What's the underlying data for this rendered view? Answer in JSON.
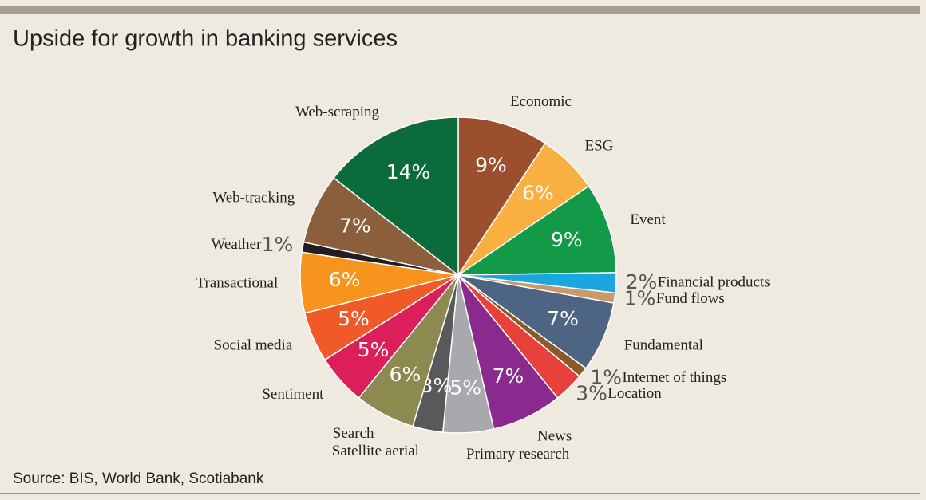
{
  "chart_data": {
    "type": "pie",
    "title": "Upside for growth in banking services",
    "source": "Source: BIS, World Bank, Scotiabank",
    "categories": [
      "Economic",
      "ESG",
      "Event",
      "Financial products",
      "Fund flows",
      "Fundamental",
      "Internet of things",
      "Location",
      "News",
      "Primary research",
      "Satellite aerial",
      "Search",
      "Sentiment",
      "Social media",
      "Transactional",
      "Weather",
      "Web-tracking",
      "Web-scraping"
    ],
    "values": [
      9,
      6,
      9,
      2,
      1,
      7,
      1,
      3,
      7,
      5,
      3,
      6,
      5,
      5,
      6,
      1,
      7,
      14
    ],
    "value_labels": [
      "9%",
      "6%",
      "9%",
      "2%",
      "1%",
      "7%",
      "1%",
      "3%",
      "7%",
      "5%",
      "3%",
      "6%",
      "5%",
      "5%",
      "6%",
      "1%",
      "7%",
      "14%"
    ],
    "colors": [
      "#9c4f2e",
      "#f9b040",
      "#139a48",
      "#1ca6df",
      "#c8996b",
      "#4d6482",
      "#8b5a2b",
      "#e8403a",
      "#8b2a8e",
      "#a7a9ac",
      "#58595b",
      "#8c8a50",
      "#dc1e5a",
      "#f05a28",
      "#f7941d",
      "#231f20",
      "#8b5e3c",
      "#0b6b3a"
    ]
  }
}
